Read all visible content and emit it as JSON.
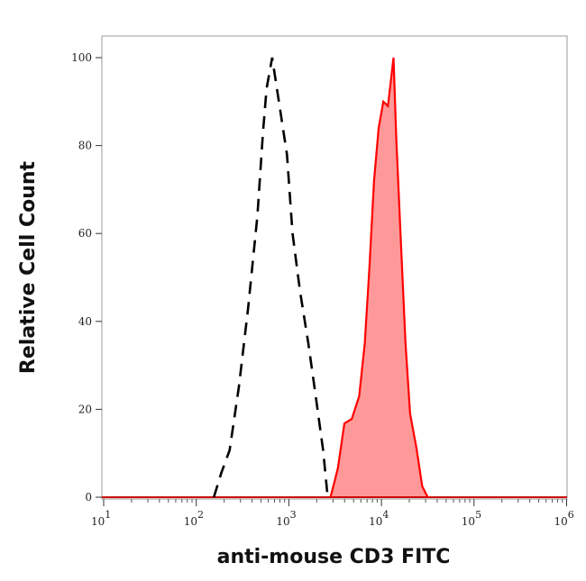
{
  "chart_data": {
    "type": "area",
    "title": "",
    "xlabel": "anti-mouse CD3 FITC",
    "ylabel": "Relative Cell Count",
    "xscale": "log",
    "xlim": [
      9.5,
      1000000
    ],
    "ylim": [
      0,
      105
    ],
    "grid": false,
    "x_ticks": [
      {
        "base": "10",
        "exp": "1",
        "value": 10
      },
      {
        "base": "10",
        "exp": "2",
        "value": 100
      },
      {
        "base": "10",
        "exp": "3",
        "value": 1000
      },
      {
        "base": "10",
        "exp": "4",
        "value": 10000
      },
      {
        "base": "10",
        "exp": "5",
        "value": 100000
      },
      {
        "base": "10",
        "exp": "6",
        "value": 1000000
      }
    ],
    "y_ticks": [
      "0",
      "20",
      "40",
      "60",
      "80",
      "100"
    ],
    "series": [
      {
        "style": "dashed-line",
        "color": "#000000",
        "x": [
          155,
          186,
          229,
          288,
          363,
          457,
          525,
          575,
          661,
          794,
          955,
          1096,
          1318,
          1622,
          1950,
          2344,
          2630
        ],
        "y": [
          0,
          5.5,
          10.7,
          25,
          43,
          64,
          83,
          93,
          100,
          89,
          78,
          60,
          47,
          35,
          23,
          10.7,
          0
        ]
      },
      {
        "style": "filled",
        "color": "#ff0000",
        "fill": "#ff9999",
        "x": [
          2818,
          3388,
          3981,
          4786,
          5754,
          6607,
          7413,
          8318,
          9333,
          10471,
          11749,
          13490,
          14454,
          16218,
          18197,
          20417,
          23988,
          27542,
          31623
        ],
        "y": [
          0,
          6.6,
          16.8,
          17.8,
          23,
          35,
          52,
          72,
          84,
          90,
          89,
          100,
          82,
          58,
          35,
          19,
          11,
          2.5,
          0
        ]
      }
    ]
  }
}
